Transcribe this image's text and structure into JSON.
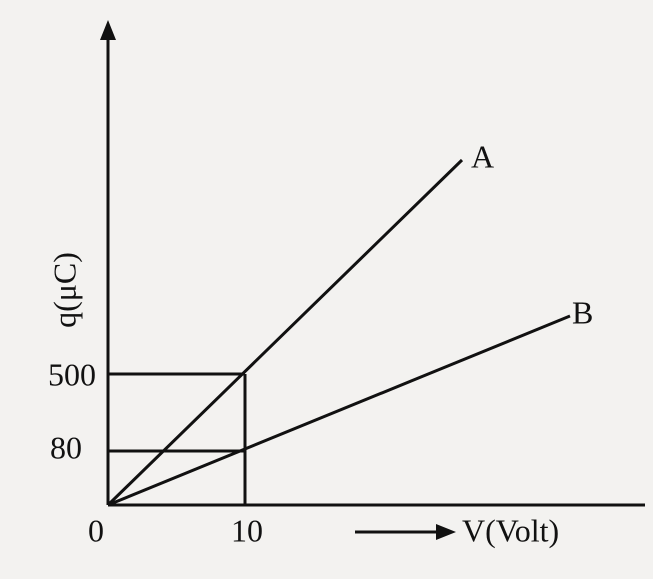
{
  "axes": {
    "y_label": "q(μC)",
    "x_label": "V(Volt)",
    "origin": "0",
    "x_tick": "10",
    "y_ticks": [
      "500",
      "80"
    ]
  },
  "lines": [
    {
      "label": "A"
    },
    {
      "label": "B"
    }
  ]
}
